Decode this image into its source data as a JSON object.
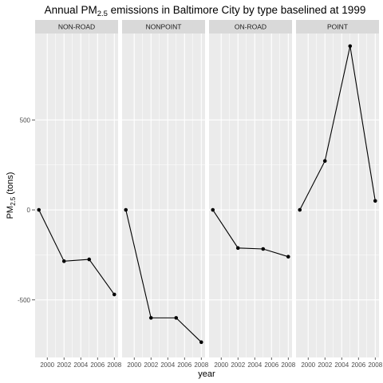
{
  "chart_data": {
    "type": "line",
    "title": "Annual PM",
    "title_subscript": "2.5",
    "title_rest": " emissions in Baltimore City by type baselined at 1999",
    "xlabel": "year",
    "ylabel": "PM",
    "ylabel_subscript": "2.5",
    "ylabel_rest": " (tons)",
    "x": [
      1999,
      2002,
      2005,
      2008
    ],
    "xlim": [
      1998.55,
      2008.45
    ],
    "x_ticks": [
      "2000",
      "2002",
      "2004",
      "2006",
      "2008"
    ],
    "ylim": [
      -820,
      980
    ],
    "y_ticks": [
      "500",
      "0",
      "-500"
    ],
    "grid": true,
    "colors": {
      "panel_bg": "#ebebeb",
      "grid": "#ffffff",
      "strip_bg": "#d9d9d9",
      "line": "#000000"
    },
    "series": [
      {
        "name": "NON-ROAD",
        "values": [
          0,
          -285,
          -275,
          -470
        ]
      },
      {
        "name": "NONPOINT",
        "values": [
          0,
          -600,
          -600,
          -735
        ]
      },
      {
        "name": "ON-ROAD",
        "values": [
          0,
          -212,
          -217,
          -260
        ]
      },
      {
        "name": "POINT",
        "values": [
          0,
          272,
          910,
          50
        ]
      }
    ]
  }
}
